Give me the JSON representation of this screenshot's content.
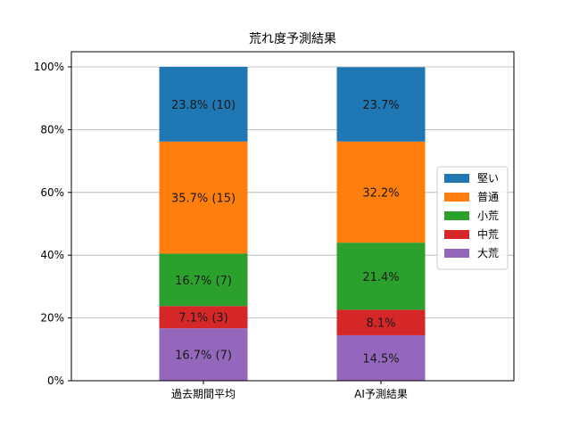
{
  "chart_data": {
    "type": "bar",
    "stacked": true,
    "title": "荒れ度予測結果",
    "xlabel": "",
    "ylabel": "",
    "ylim": [
      0,
      100
    ],
    "yticks": [
      "0%",
      "20%",
      "40%",
      "60%",
      "80%",
      "100%"
    ],
    "grid": "horizontal",
    "legend_position": "right",
    "categories": [
      "過去期間平均",
      "AI予測結果"
    ],
    "series": [
      {
        "name": "大荒",
        "color": "#9467bd",
        "values": [
          16.7,
          14.5
        ],
        "labels": [
          "16.7% (7)",
          "14.5%"
        ]
      },
      {
        "name": "中荒",
        "color": "#d62728",
        "values": [
          7.1,
          8.1
        ],
        "labels": [
          "7.1% (3)",
          "8.1%"
        ]
      },
      {
        "name": "小荒",
        "color": "#2ca02c",
        "values": [
          16.7,
          21.4
        ],
        "labels": [
          "16.7% (7)",
          "21.4%"
        ]
      },
      {
        "name": "普通",
        "color": "#ff7f0e",
        "values": [
          35.7,
          32.2
        ],
        "labels": [
          "35.7% (15)",
          "32.2%"
        ]
      },
      {
        "name": "堅い",
        "color": "#1f77b4",
        "values": [
          23.8,
          23.7
        ],
        "labels": [
          "23.8% (10)",
          "23.7%"
        ]
      }
    ],
    "legend_order": [
      "堅い",
      "普通",
      "小荒",
      "中荒",
      "大荒"
    ]
  }
}
